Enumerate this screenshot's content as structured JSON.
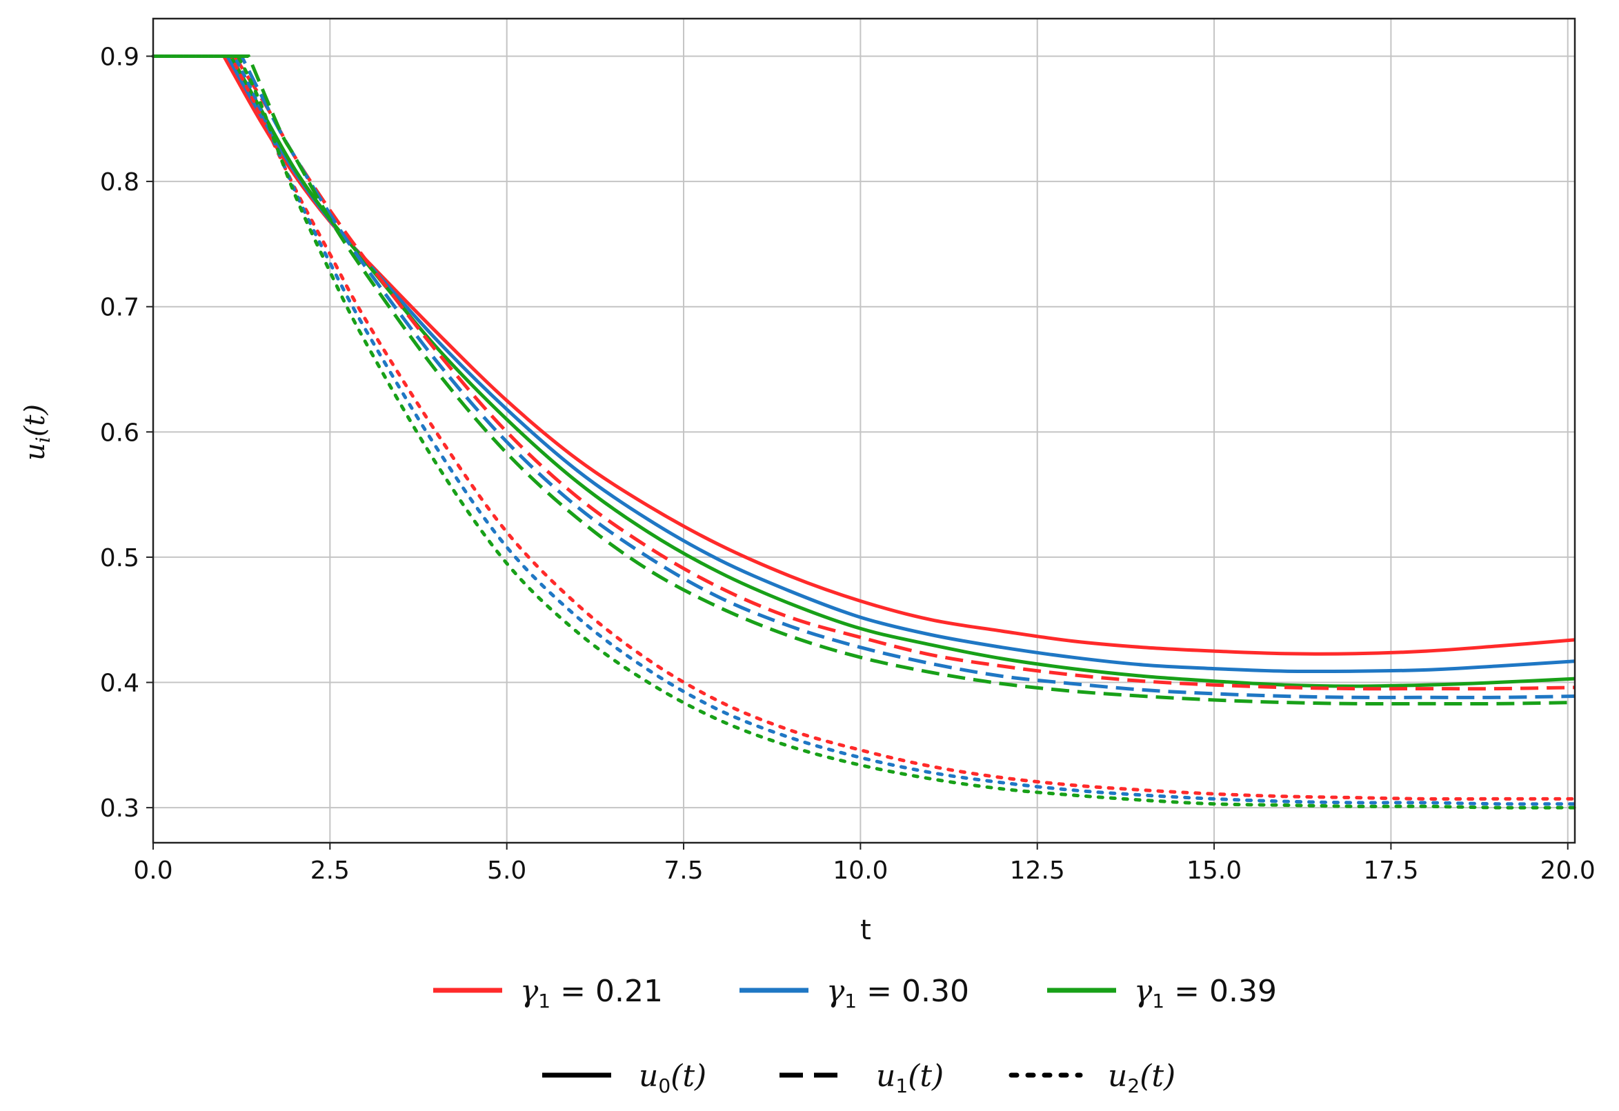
{
  "chart_data": {
    "type": "line",
    "xlabel": "t",
    "ylabel": {
      "base": "u",
      "sub": "i",
      "arg": "(t)"
    },
    "xlim": [
      0,
      20.1
    ],
    "ylim": [
      0.272,
      0.93
    ],
    "xticks": [
      0,
      2.5,
      5,
      7.5,
      10,
      12.5,
      15,
      17.5,
      20
    ],
    "xtick_labels": [
      "0.0",
      "2.5",
      "5.0",
      "7.5",
      "10.0",
      "12.5",
      "15.0",
      "17.5",
      "20.0"
    ],
    "yticks": [
      0.3,
      0.4,
      0.5,
      0.6,
      0.7,
      0.8,
      0.9
    ],
    "ytick_labels": [
      "0.3",
      "0.4",
      "0.5",
      "0.6",
      "0.7",
      "0.8",
      "0.9"
    ],
    "grid": true,
    "legend_position": "bottom",
    "color_legend": [
      {
        "label_sym": "γ",
        "label_sub": "1",
        "label_val": " = 0.21",
        "color": "#ff2a2a"
      },
      {
        "label_sym": "γ",
        "label_sub": "1",
        "label_val": " = 0.30",
        "color": "#1f77c4"
      },
      {
        "label_sym": "γ",
        "label_sub": "1",
        "label_val": " = 0.39",
        "color": "#18a018"
      }
    ],
    "style_legend": [
      {
        "label_base": "u",
        "label_sub": "0",
        "label_arg": "(t)",
        "dash": "solid"
      },
      {
        "label_base": "u",
        "label_sub": "1",
        "label_arg": "(t)",
        "dash": "dashed"
      },
      {
        "label_base": "u",
        "label_sub": "2",
        "label_arg": "(t)",
        "dash": "dotted"
      }
    ],
    "series": [
      {
        "gamma": "0.21",
        "component": "u0",
        "color": "#ff2a2a",
        "dash": "solid",
        "x": [
          0,
          1.0,
          1.5,
          2.0,
          2.5,
          3.0,
          4.0,
          5.0,
          6.0,
          7.0,
          8.0,
          9.0,
          10.0,
          11.0,
          12.0,
          13.0,
          14.0,
          15.0,
          16.0,
          17.0,
          18.0,
          19.0,
          20.1
        ],
        "y": [
          0.9,
          0.9,
          0.85,
          0.805,
          0.768,
          0.738,
          0.68,
          0.625,
          0.578,
          0.541,
          0.51,
          0.485,
          0.465,
          0.45,
          0.441,
          0.433,
          0.428,
          0.425,
          0.423,
          0.423,
          0.425,
          0.429,
          0.434
        ]
      },
      {
        "gamma": "0.30",
        "component": "u0",
        "color": "#1f77c4",
        "dash": "solid",
        "x": [
          0,
          1.05,
          1.5,
          2.0,
          2.5,
          3.0,
          4.0,
          5.0,
          6.0,
          7.0,
          8.0,
          9.0,
          10.0,
          11.0,
          12.0,
          13.0,
          14.0,
          15.0,
          16.0,
          17.0,
          18.0,
          19.0,
          20.1
        ],
        "y": [
          0.9,
          0.9,
          0.855,
          0.808,
          0.769,
          0.737,
          0.674,
          0.618,
          0.569,
          0.53,
          0.498,
          0.473,
          0.452,
          0.438,
          0.428,
          0.42,
          0.414,
          0.411,
          0.409,
          0.409,
          0.41,
          0.413,
          0.417
        ]
      },
      {
        "gamma": "0.39",
        "component": "u0",
        "color": "#18a018",
        "dash": "solid",
        "x": [
          0,
          1.1,
          1.5,
          2.0,
          2.5,
          3.0,
          4.0,
          5.0,
          6.0,
          7.0,
          8.0,
          9.0,
          10.0,
          11.0,
          12.0,
          13.0,
          14.0,
          15.0,
          16.0,
          17.0,
          18.0,
          19.0,
          20.1
        ],
        "y": [
          0.9,
          0.9,
          0.86,
          0.81,
          0.77,
          0.736,
          0.668,
          0.61,
          0.56,
          0.52,
          0.488,
          0.463,
          0.443,
          0.43,
          0.419,
          0.411,
          0.405,
          0.401,
          0.398,
          0.397,
          0.398,
          0.4,
          0.403
        ]
      },
      {
        "gamma": "0.21",
        "component": "u1",
        "color": "#ff2a2a",
        "dash": "dashed",
        "x": [
          0,
          1.15,
          1.6,
          2.0,
          2.5,
          3.0,
          4.0,
          5.0,
          6.0,
          7.0,
          8.0,
          9.0,
          10.0,
          11.0,
          12.0,
          13.0,
          14.0,
          15.0,
          16.0,
          17.0,
          18.0,
          19.0,
          20.1
        ],
        "y": [
          0.9,
          0.9,
          0.86,
          0.82,
          0.777,
          0.738,
          0.665,
          0.6,
          0.548,
          0.508,
          0.476,
          0.452,
          0.436,
          0.422,
          0.413,
          0.406,
          0.401,
          0.398,
          0.396,
          0.395,
          0.395,
          0.395,
          0.396
        ]
      },
      {
        "gamma": "0.30",
        "component": "u1",
        "color": "#1f77c4",
        "dash": "dashed",
        "x": [
          0,
          1.25,
          1.7,
          2.0,
          2.5,
          3.0,
          4.0,
          5.0,
          6.0,
          7.0,
          8.0,
          9.0,
          10.0,
          11.0,
          12.0,
          13.0,
          14.0,
          15.0,
          16.0,
          17.0,
          18.0,
          19.0,
          20.1
        ],
        "y": [
          0.9,
          0.9,
          0.85,
          0.82,
          0.774,
          0.732,
          0.657,
          0.592,
          0.54,
          0.5,
          0.468,
          0.445,
          0.428,
          0.415,
          0.405,
          0.399,
          0.394,
          0.391,
          0.389,
          0.388,
          0.388,
          0.388,
          0.389
        ]
      },
      {
        "gamma": "0.39",
        "component": "u1",
        "color": "#18a018",
        "dash": "dashed",
        "x": [
          0,
          1.35,
          1.8,
          2.0,
          2.5,
          3.0,
          4.0,
          5.0,
          6.0,
          7.0,
          8.0,
          9.0,
          10.0,
          11.0,
          12.0,
          13.0,
          14.0,
          15.0,
          16.0,
          17.0,
          18.0,
          19.0,
          20.1
        ],
        "y": [
          0.9,
          0.9,
          0.84,
          0.82,
          0.77,
          0.727,
          0.649,
          0.583,
          0.531,
          0.49,
          0.46,
          0.437,
          0.42,
          0.408,
          0.399,
          0.393,
          0.389,
          0.386,
          0.384,
          0.383,
          0.383,
          0.383,
          0.384
        ]
      },
      {
        "gamma": "0.21",
        "component": "u2",
        "color": "#ff2a2a",
        "dash": "dotted",
        "x": [
          0,
          1.1,
          1.5,
          2.0,
          2.5,
          3.0,
          4.0,
          5.0,
          6.0,
          7.0,
          8.0,
          9.0,
          10.0,
          11.0,
          12.0,
          13.0,
          14.0,
          15.0,
          16.0,
          17.0,
          18.0,
          19.0,
          20.1
        ],
        "y": [
          0.9,
          0.9,
          0.855,
          0.795,
          0.742,
          0.69,
          0.6,
          0.52,
          0.462,
          0.418,
          0.385,
          0.362,
          0.346,
          0.333,
          0.324,
          0.318,
          0.314,
          0.311,
          0.309,
          0.308,
          0.307,
          0.307,
          0.307
        ]
      },
      {
        "gamma": "0.30",
        "component": "u2",
        "color": "#1f77c4",
        "dash": "dotted",
        "x": [
          0,
          1.15,
          1.5,
          2.0,
          2.5,
          3.0,
          4.0,
          5.0,
          6.0,
          7.0,
          8.0,
          9.0,
          10.0,
          11.0,
          12.0,
          13.0,
          14.0,
          15.0,
          16.0,
          17.0,
          18.0,
          19.0,
          20.1
        ],
        "y": [
          0.9,
          0.9,
          0.86,
          0.793,
          0.735,
          0.682,
          0.588,
          0.508,
          0.452,
          0.41,
          0.378,
          0.356,
          0.34,
          0.328,
          0.32,
          0.314,
          0.31,
          0.307,
          0.305,
          0.304,
          0.304,
          0.303,
          0.303
        ]
      },
      {
        "gamma": "0.39",
        "component": "u2",
        "color": "#18a018",
        "dash": "dotted",
        "x": [
          0,
          1.2,
          1.5,
          2.0,
          2.5,
          3.0,
          4.0,
          5.0,
          6.0,
          7.0,
          8.0,
          9.0,
          10.0,
          11.0,
          12.0,
          13.0,
          14.0,
          15.0,
          16.0,
          17.0,
          18.0,
          19.0,
          20.1
        ],
        "y": [
          0.9,
          0.9,
          0.865,
          0.79,
          0.728,
          0.672,
          0.575,
          0.495,
          0.44,
          0.4,
          0.37,
          0.349,
          0.334,
          0.323,
          0.315,
          0.31,
          0.306,
          0.303,
          0.302,
          0.301,
          0.301,
          0.3,
          0.3
        ]
      }
    ]
  }
}
